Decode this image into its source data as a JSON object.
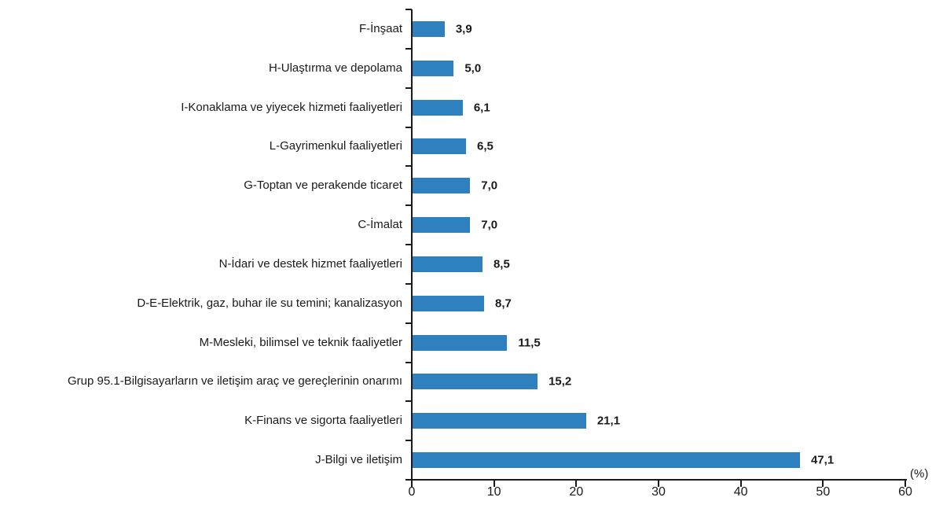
{
  "chart_data": {
    "type": "bar",
    "orientation": "horizontal",
    "title": "",
    "categories": [
      "F-İnşaat",
      "H-Ulaştırma ve depolama",
      "I-Konaklama ve yiyecek hizmeti faaliyetleri",
      "L-Gayrimenkul faaliyetleri",
      "G-Toptan ve perakende ticaret",
      "C-İmalat",
      "N-İdari ve destek hizmet faaliyetleri",
      "D-E-Elektrik, gaz, buhar ile su temini; kanalizasyon",
      "M-Mesleki, bilimsel ve teknik faaliyetler",
      "Grup 95.1-Bilgisayarların ve iletişim araç ve gereçlerinin onarımı",
      "K-Finans ve sigorta faaliyetleri",
      "J-Bilgi ve iletişim"
    ],
    "values": [
      3.9,
      5.0,
      6.1,
      6.5,
      7.0,
      7.0,
      8.5,
      8.7,
      11.5,
      15.2,
      21.1,
      47.1
    ],
    "value_labels": [
      "3,9",
      "5,0",
      "6,1",
      "6,5",
      "7,0",
      "7,0",
      "8,5",
      "8,7",
      "11,5",
      "15,2",
      "21,1",
      "47,1"
    ],
    "x_ticks": [
      0,
      10,
      20,
      30,
      40,
      50,
      60
    ],
    "x_tick_labels": [
      "0",
      "10",
      "20",
      "30",
      "40",
      "50",
      "60"
    ],
    "xlim": [
      0,
      60
    ],
    "axis_unit": "(%)",
    "xlabel": "",
    "ylabel": "",
    "grid": false,
    "legend_position": "none",
    "bar_color": "#2E81BE",
    "axis_color": "#1a1a1a",
    "text_color": "#1a1a1a"
  }
}
